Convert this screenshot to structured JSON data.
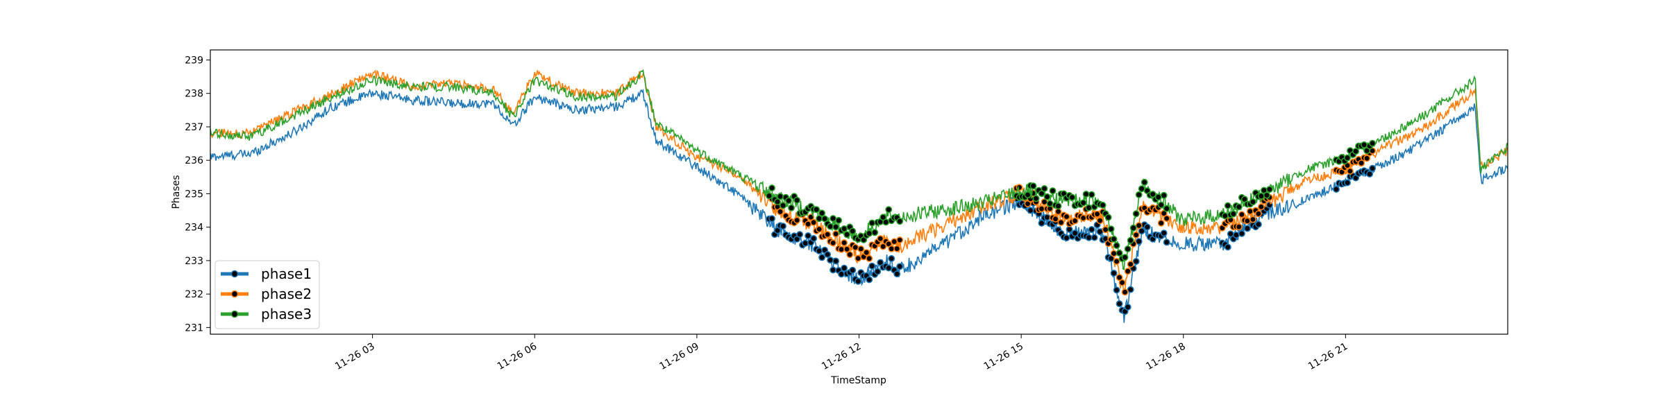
{
  "chart_data": {
    "type": "line",
    "xlabel": "TimeStamp",
    "ylabel": "Phases",
    "ylim": [
      230.8,
      239.3
    ],
    "xlim_hours": [
      0,
      24
    ],
    "yticks": [
      231,
      232,
      233,
      234,
      235,
      236,
      237,
      238,
      239
    ],
    "xticks": [
      {
        "label": "11-26 03",
        "hour": 3
      },
      {
        "label": "11-26 06",
        "hour": 6
      },
      {
        "label": "11-26 09",
        "hour": 9
      },
      {
        "label": "11-26 12",
        "hour": 12
      },
      {
        "label": "11-26 15",
        "hour": 15
      },
      {
        "label": "11-26 18",
        "hour": 18
      },
      {
        "label": "11-26 21",
        "hour": 21
      }
    ],
    "x_hours": [
      0,
      0.75,
      1.5,
      2.25,
      3,
      3.75,
      4.5,
      5.25,
      5.6,
      6,
      6.75,
      7.5,
      8.0,
      8.25,
      9.0,
      9.75,
      10.5,
      11.25,
      11.6,
      12.0,
      12.5,
      12.75,
      13.5,
      14.25,
      15.0,
      15.75,
      16.5,
      16.9,
      17.25,
      18.0,
      18.75,
      19.5,
      20.25,
      21.0,
      21.75,
      22.5,
      23.4,
      23.5,
      24.0
    ],
    "series": [
      {
        "name": "phase1",
        "color": "#1f77b4",
        "values": [
          236.1,
          236.2,
          236.8,
          237.6,
          238.0,
          237.8,
          237.7,
          237.7,
          237.0,
          237.9,
          237.5,
          237.6,
          238.0,
          236.6,
          235.8,
          235.0,
          233.9,
          233.4,
          232.8,
          232.4,
          233.0,
          232.7,
          233.4,
          234.3,
          234.8,
          233.8,
          233.9,
          231.3,
          233.9,
          233.5,
          233.5,
          234.4,
          234.8,
          235.4,
          235.9,
          236.6,
          237.6,
          235.4,
          235.8
        ]
      },
      {
        "name": "phase2",
        "color": "#ff7f0e",
        "values": [
          236.8,
          236.8,
          237.4,
          238.0,
          238.6,
          238.2,
          238.3,
          238.1,
          237.4,
          238.6,
          238.0,
          238.0,
          238.6,
          237.0,
          236.1,
          235.6,
          234.5,
          234.0,
          233.6,
          233.1,
          233.6,
          233.4,
          234.0,
          234.6,
          235.0,
          234.3,
          234.4,
          232.0,
          234.6,
          234.0,
          234.0,
          234.6,
          235.4,
          235.7,
          236.4,
          237.0,
          238.1,
          235.8,
          236.3
        ]
      },
      {
        "name": "phase3",
        "color": "#2ca02c",
        "values": [
          236.8,
          236.7,
          237.3,
          237.9,
          238.4,
          238.2,
          238.2,
          238.0,
          237.3,
          238.4,
          237.9,
          237.9,
          238.6,
          237.1,
          236.3,
          235.6,
          234.9,
          234.4,
          234.0,
          233.7,
          234.3,
          234.3,
          234.5,
          234.7,
          235.1,
          234.8,
          234.8,
          232.8,
          235.3,
          234.2,
          234.4,
          235.0,
          235.7,
          236.1,
          236.7,
          237.4,
          238.4,
          235.7,
          236.4
        ]
      }
    ],
    "legend": {
      "placement": "lower-left",
      "entries": [
        "phase1",
        "phase2",
        "phase3"
      ]
    },
    "grid": false
  }
}
